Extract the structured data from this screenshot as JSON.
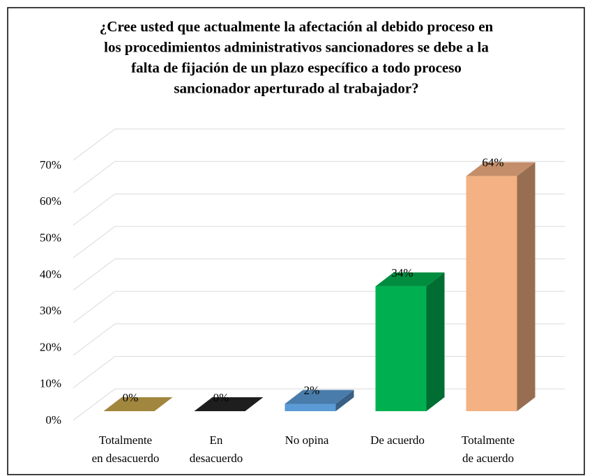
{
  "chart_data": {
    "type": "bar3d",
    "title": "¿Cree usted que actualmente la afectación al debido proceso en\nlos procedimientos administrativos sancionadores se debe a la\nfalta de fijación de un plazo específico a todo proceso\nsancionador aperturado al trabajador?",
    "categories": [
      "Totalmente\nen desacuerdo",
      "En\ndesacuerdo",
      "No opina",
      "De acuerdo",
      "Totalmente\nde acuerdo"
    ],
    "values": [
      0,
      0,
      2,
      34,
      64
    ],
    "value_labels": [
      "0%",
      "0%",
      "2%",
      "34%",
      "64%"
    ],
    "colors": [
      "#c9a84c",
      "#262626",
      "#5b9bd5",
      "#00b050",
      "#f4b183"
    ],
    "ylim": [
      0,
      80
    ],
    "yticks": [
      {
        "value": 0,
        "label": "0%"
      },
      {
        "value": 10,
        "label": "10%"
      },
      {
        "value": 20,
        "label": "20%"
      },
      {
        "value": 30,
        "label": "30%"
      },
      {
        "value": 40,
        "label": "40%"
      },
      {
        "value": 50,
        "label": "50%"
      },
      {
        "value": 60,
        "label": "60%"
      },
      {
        "value": 70,
        "label": "70%"
      }
    ],
    "grid": true
  }
}
